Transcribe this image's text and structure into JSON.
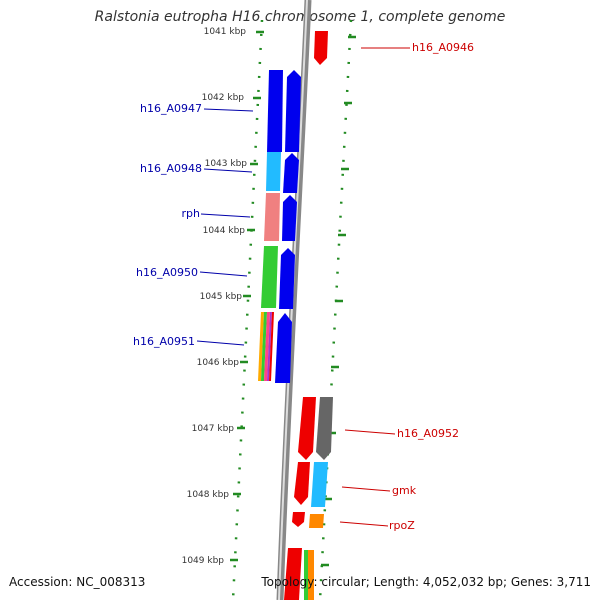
{
  "header": {
    "title": "Ralstonia eutropha H16 chromosome 1, complete genome"
  },
  "footer": {
    "accession": "Accession: NC_008313",
    "stats": "Topology: circular; Length: 4,052,032 bp; Genes: 3,711"
  },
  "ruler": {
    "ticks": [
      "1041 kbp",
      "1042 kbp",
      "1043 kbp",
      "1044 kbp",
      "1045 kbp",
      "1046 kbp",
      "1047 kbp",
      "1048 kbp",
      "1049 kbp"
    ]
  },
  "gene_labels": [
    {
      "text": "h16_A0946",
      "color": "#cc0000"
    },
    {
      "text": "h16_A0947",
      "color": "#0000aa"
    },
    {
      "text": "h16_A0948",
      "color": "#0000aa"
    },
    {
      "text": "rph",
      "color": "#0000aa"
    },
    {
      "text": "h16_A0950",
      "color": "#0000aa"
    },
    {
      "text": "h16_A0951",
      "color": "#0000aa"
    },
    {
      "text": "h16_A0952",
      "color": "#cc0000"
    },
    {
      "text": "gmk",
      "color": "#cc0000"
    },
    {
      "text": "rpoZ",
      "color": "#cc0000"
    }
  ],
  "colors": {
    "forward_strand": "#0000ee",
    "reverse_strand": "#ee0000",
    "backbone": "#888888",
    "tick_marks": "#228B22",
    "cog_cyan": "#22bbff",
    "cog_salmon": "#f08080",
    "cog_green": "#33cc33",
    "cog_gray": "#666666",
    "cog_orange": "#ff8800"
  }
}
